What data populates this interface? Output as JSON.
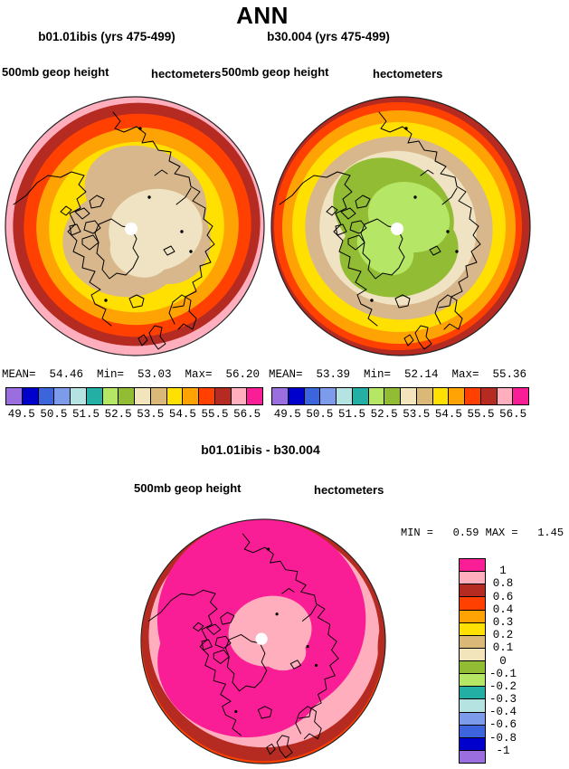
{
  "title": "ANN",
  "palette": {
    "purple": "#9A6EDF",
    "darkblue": "#0000CD",
    "blue": "#3C64DC",
    "cornflower": "#7D9BEB",
    "palecyan": "#B5E3E2",
    "teal": "#23AFA4",
    "lightgreen": "#B5E666",
    "olive": "#92BC33",
    "cream": "#F2E5BB",
    "tan": "#DAB877",
    "yellow": "#FFE000",
    "orange": "#FFA305",
    "orangered": "#FF4000",
    "darkred": "#B52A21",
    "pink": "#FFAEBE",
    "magenta": "#FA1E96",
    "map_cream": "#F0E3C3",
    "map_tan": "#D7B78B",
    "pole_dot": "#FFFFFF"
  },
  "colorbar": {
    "order": [
      "purple",
      "darkblue",
      "blue",
      "cornflower",
      "palecyan",
      "teal",
      "lightgreen",
      "olive",
      "cream",
      "tan",
      "yellow",
      "orange",
      "orangered",
      "darkred",
      "pink",
      "magenta"
    ],
    "tick_labels": [
      "49.5",
      "50.5",
      "51.5",
      "52.5",
      "53.5",
      "54.5",
      "55.5",
      "56.5"
    ]
  },
  "panels": [
    {
      "subtitle": "b01.01ibis (yrs 475-499)",
      "field": "500mb geop height",
      "units": "hectometers",
      "stats": "MEAN=  54.46  Min=  53.03  Max=  56.20"
    },
    {
      "subtitle": "b30.004 (yrs 475-499)",
      "field": "500mb geop height",
      "units": "hectometers",
      "stats": "MEAN=  53.39  Min=  52.14  Max=  55.36"
    }
  ],
  "diff": {
    "title": "b01.01ibis - b30.004",
    "field": "500mb geop height",
    "units": "hectometers",
    "minmax": "MIN =   0.59 MAX =   1.45",
    "colorbar": {
      "order": [
        "magenta",
        "pink",
        "darkred",
        "orangered",
        "orange",
        "yellow",
        "tan",
        "cream",
        "olive",
        "lightgreen",
        "teal",
        "palecyan",
        "cornflower",
        "blue",
        "darkblue",
        "purple"
      ],
      "labels": [
        "1",
        "0.8",
        "0.6",
        "0.4",
        "0.3",
        "0.2",
        "0.1",
        "0",
        "-0.1",
        "-0.2",
        "-0.3",
        "-0.4",
        "-0.6",
        "-0.8",
        "-1"
      ]
    }
  },
  "chart_data": [
    {
      "type": "heatmap",
      "title": "b01.01ibis (yrs 475-499)",
      "variable": "500mb geop height",
      "units": "hectometers",
      "projection": "north polar stereographic",
      "mean": 54.46,
      "min": 53.03,
      "max": 56.2,
      "contour_levels": [
        49.5,
        50,
        50.5,
        51,
        51.5,
        52,
        52.5,
        53,
        53.5,
        54,
        54.5,
        55,
        55.5,
        56,
        56.5
      ],
      "labeled_levels": [
        49.5,
        50.5,
        51.5,
        52.5,
        53.5,
        54.5,
        55.5,
        56.5
      ],
      "legend_position": "bottom",
      "pattern": "low center (cream ~53-53.5) at pole increasing outward through tan, yellow, orange, orange-red, dark red to pink (>56) at map edge"
    },
    {
      "type": "heatmap",
      "title": "b30.004 (yrs 475-499)",
      "variable": "500mb geop height",
      "units": "hectometers",
      "projection": "north polar stereographic",
      "mean": 53.39,
      "min": 52.14,
      "max": 55.36,
      "contour_levels": [
        49.5,
        50,
        50.5,
        51,
        51.5,
        52,
        52.5,
        53,
        53.5,
        54,
        54.5,
        55,
        55.5,
        56,
        56.5
      ],
      "labeled_levels": [
        49.5,
        50.5,
        51.5,
        52.5,
        53.5,
        54.5,
        55.5,
        56.5
      ],
      "legend_position": "bottom",
      "pattern": "low center (light green ~52-52.5) at pole increasing outward through olive, cream, tan, yellow, orange to orange-red/dark red (~55.4) at map edge"
    },
    {
      "type": "heatmap",
      "title": "b01.01ibis - b30.004",
      "variable": "500mb geop height difference",
      "units": "hectometers",
      "projection": "north polar stereographic",
      "min": 0.59,
      "max": 1.45,
      "contour_levels": [
        -1,
        -0.8,
        -0.6,
        -0.4,
        -0.3,
        -0.2,
        -0.1,
        0,
        0.1,
        0.2,
        0.3,
        0.4,
        0.6,
        0.8,
        1
      ],
      "legend_position": "right",
      "pattern": "mostly magenta (>1); pink (0.8-1) around pole and along left/bottom/right rims; dark red (0.6-0.8) slivers at west, south and southeast edges; thin orange-red (0.4-0.6) at the very bottom edge"
    }
  ]
}
